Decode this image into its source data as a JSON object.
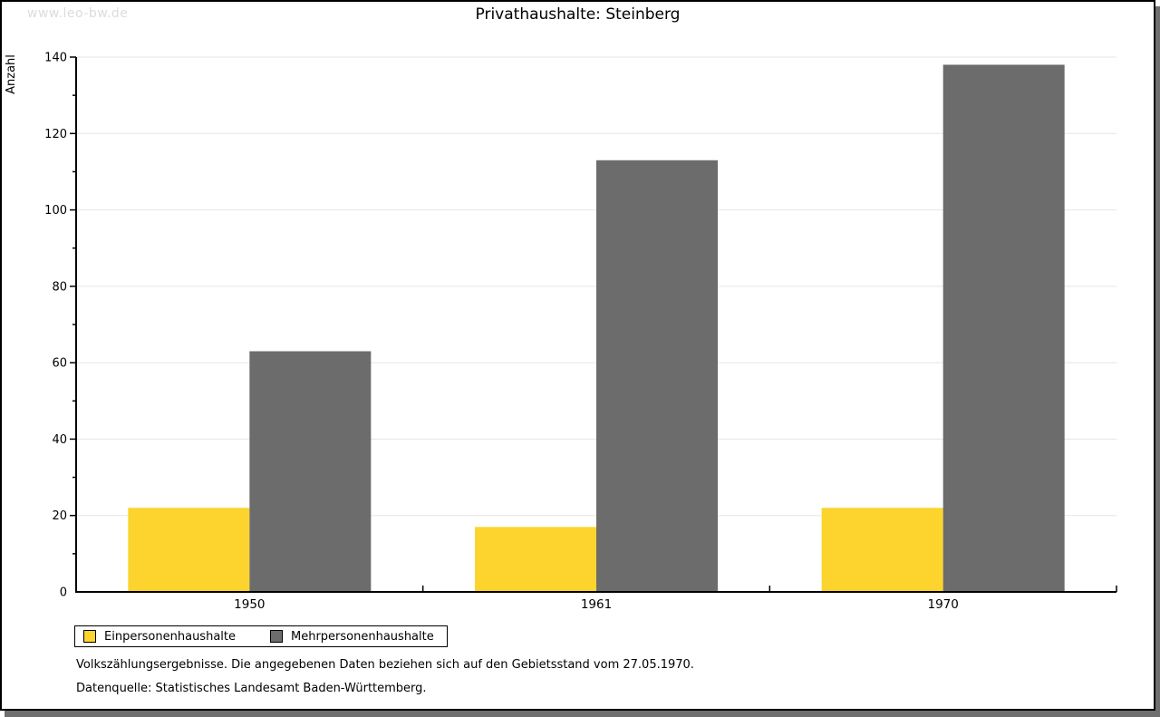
{
  "watermark": "www.leo-bw.de",
  "title": "Privathaushalte: Steinberg",
  "chart_data": {
    "type": "bar",
    "title": "Privathaushalte: Steinberg",
    "categories": [
      "1950",
      "1961",
      "1970"
    ],
    "series": [
      {
        "name": "Einpersonenhaushalte",
        "color": "#fcd42d",
        "values": [
          22,
          17,
          22
        ]
      },
      {
        "name": "Mehrpersonenhaushalte",
        "color": "#6c6c6c",
        "values": [
          63,
          113,
          138
        ]
      }
    ],
    "xlabel": "",
    "ylabel": "Anzahl",
    "ylim": [
      0,
      140
    ],
    "ytick_step": 20,
    "yminor_step": 10,
    "grid": "horizontal-major",
    "gridline_color": "#e5e5e5",
    "axis_color": "#000000",
    "legend_position": "bottom-left"
  },
  "footnotes": {
    "line1": "Volkszählungsergebnisse. Die angegebenen Daten beziehen sich auf den Gebietsstand vom 27.05.1970.",
    "line2": "Datenquelle: Statistisches Landesamt Baden-Württemberg."
  }
}
